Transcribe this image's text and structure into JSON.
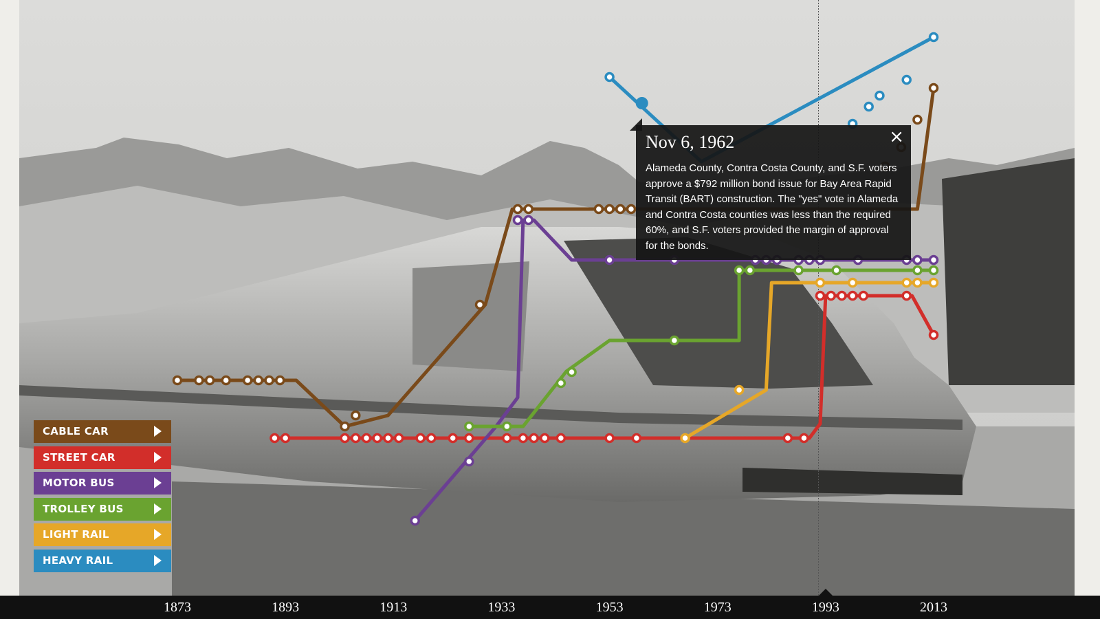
{
  "chart_data": {
    "type": "line",
    "title": "",
    "xlabel": "",
    "ylabel": "",
    "x_ticks": [
      "1873",
      "1893",
      "1913",
      "1933",
      "1953",
      "1973",
      "1993",
      "2013"
    ],
    "x_range": [
      1873,
      2013
    ],
    "current_marker_year": 1993,
    "series": [
      {
        "name": "CABLE CAR",
        "color": "#7a4a1a",
        "route": [
          [
            1873,
            553
          ],
          [
            1895,
            553
          ],
          [
            1904,
            620
          ],
          [
            1912,
            604
          ],
          [
            1930,
            443
          ],
          [
            1935,
            304
          ],
          [
            1937,
            304
          ],
          [
            2010,
            304
          ],
          [
            2013,
            128
          ]
        ],
        "stops": [
          [
            1873,
            553
          ],
          [
            1877,
            553
          ],
          [
            1879,
            553
          ],
          [
            1882,
            553
          ],
          [
            1886,
            553
          ],
          [
            1888,
            553
          ],
          [
            1890,
            553
          ],
          [
            1892,
            553
          ],
          [
            1904,
            620
          ],
          [
            1906,
            604
          ],
          [
            1929,
            443
          ],
          [
            1936,
            304
          ],
          [
            1938,
            304
          ],
          [
            1951,
            304
          ],
          [
            1953,
            304
          ],
          [
            1955,
            304
          ],
          [
            1957,
            304
          ],
          [
            2004,
            242
          ],
          [
            2007,
            214
          ],
          [
            2010,
            174
          ],
          [
            2013,
            128
          ]
        ]
      },
      {
        "name": "STREET CAR",
        "color": "#d22e2a",
        "route": [
          [
            1891,
            637
          ],
          [
            1990,
            637
          ],
          [
            1992,
            616
          ],
          [
            1993,
            430
          ],
          [
            2009,
            430
          ],
          [
            2013,
            487
          ]
        ],
        "stops": [
          [
            1891,
            637
          ],
          [
            1893,
            637
          ],
          [
            1904,
            637
          ],
          [
            1906,
            637
          ],
          [
            1908,
            637
          ],
          [
            1910,
            637
          ],
          [
            1912,
            637
          ],
          [
            1914,
            637
          ],
          [
            1918,
            637
          ],
          [
            1920,
            637
          ],
          [
            1924,
            637
          ],
          [
            1927,
            637
          ],
          [
            1934,
            637
          ],
          [
            1937,
            637
          ],
          [
            1939,
            637
          ],
          [
            1941,
            637
          ],
          [
            1944,
            637
          ],
          [
            1953,
            637
          ],
          [
            1958,
            637
          ],
          [
            1986,
            637
          ],
          [
            1989,
            637
          ],
          [
            1992,
            430
          ],
          [
            1994,
            430
          ],
          [
            1996,
            430
          ],
          [
            1998,
            430
          ],
          [
            2000,
            430
          ],
          [
            2008,
            430
          ],
          [
            2013,
            487
          ]
        ]
      },
      {
        "name": "MOTOR BUS",
        "color": "#6b3f93",
        "route": [
          [
            1917,
            757
          ],
          [
            1932,
            620
          ],
          [
            1936,
            578
          ],
          [
            1937,
            320
          ],
          [
            1939,
            320
          ],
          [
            1946,
            378
          ],
          [
            2013,
            378
          ]
        ],
        "stops": [
          [
            1917,
            757
          ],
          [
            1927,
            671
          ],
          [
            1936,
            320
          ],
          [
            1938,
            320
          ],
          [
            1953,
            378
          ],
          [
            1965,
            378
          ],
          [
            1980,
            378
          ],
          [
            1982,
            378
          ],
          [
            1984,
            378
          ],
          [
            1988,
            378
          ],
          [
            1990,
            378
          ],
          [
            1992,
            378
          ],
          [
            1999,
            378
          ],
          [
            2008,
            378
          ],
          [
            2010,
            378
          ],
          [
            2013,
            378
          ]
        ]
      },
      {
        "name": "TROLLEY BUS",
        "color": "#6aa330",
        "route": [
          [
            1927,
            620
          ],
          [
            1937,
            620
          ],
          [
            1945,
            540
          ],
          [
            1953,
            495
          ],
          [
            1977,
            495
          ],
          [
            1977,
            393
          ],
          [
            2013,
            393
          ]
        ],
        "stops": [
          [
            1927,
            620
          ],
          [
            1934,
            620
          ],
          [
            1944,
            557
          ],
          [
            1946,
            541
          ],
          [
            1965,
            495
          ],
          [
            1977,
            393
          ],
          [
            1979,
            393
          ],
          [
            1988,
            393
          ],
          [
            1995,
            393
          ],
          [
            2010,
            393
          ],
          [
            2013,
            393
          ]
        ]
      },
      {
        "name": "LIGHT RAIL",
        "color": "#e6a728",
        "route": [
          [
            1967,
            637
          ],
          [
            1982,
            567
          ],
          [
            1983,
            411
          ],
          [
            2013,
            411
          ]
        ],
        "stops": [
          [
            1967,
            637
          ],
          [
            1977,
            567
          ],
          [
            1992,
            411
          ],
          [
            1998,
            411
          ],
          [
            2008,
            411
          ],
          [
            2010,
            411
          ],
          [
            2013,
            411
          ]
        ]
      },
      {
        "name": "HEAVY RAIL",
        "color": "#2b8cc0",
        "route": [
          [
            1953,
            112
          ],
          [
            1970,
            235
          ],
          [
            2013,
            54
          ]
        ],
        "stops": [
          [
            1953,
            112
          ],
          [
            1959,
            150
          ],
          [
            1998,
            180
          ],
          [
            2001,
            155
          ],
          [
            2003,
            139
          ],
          [
            2008,
            116
          ],
          [
            2013,
            54
          ]
        ]
      }
    ]
  },
  "legend": {
    "items": [
      {
        "label": "CABLE CAR",
        "color": "#7a4a1a"
      },
      {
        "label": "STREET CAR",
        "color": "#d22e2a"
      },
      {
        "label": "MOTOR BUS",
        "color": "#6b3f93"
      },
      {
        "label": "TROLLEY BUS",
        "color": "#6aa330"
      },
      {
        "label": "LIGHT RAIL",
        "color": "#e6a728"
      },
      {
        "label": "HEAVY RAIL",
        "color": "#2b8cc0"
      }
    ]
  },
  "tooltip": {
    "title": "Nov 6, 1962",
    "body": "Alameda County, Contra Costa County, and S.F. voters approve a $792 million bond issue for Bay Area Rapid Transit (BART) construction. The \"yes\" vote in Alameda and Contra Costa counties was less than the required 60%, and S.F. voters provided the margin of approval for the bonds.",
    "close_icon": "×"
  }
}
